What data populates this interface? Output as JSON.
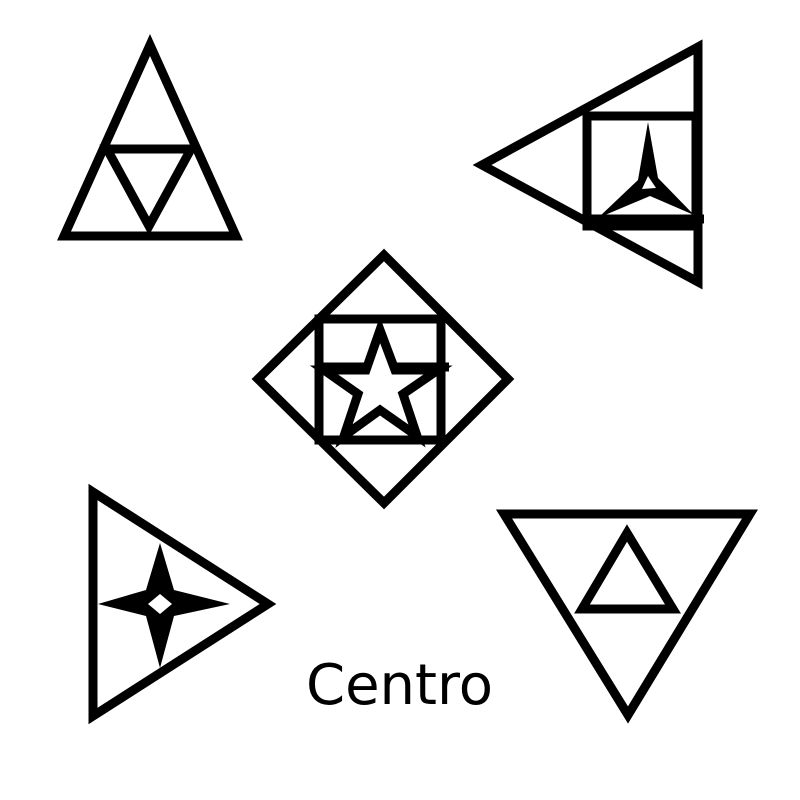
{
  "caption": "Centro",
  "colors": {
    "stroke": "#000000",
    "background": "#ffffff"
  },
  "figures": [
    {
      "name": "top-left-triangle",
      "inner": "inverted-triangle"
    },
    {
      "name": "top-right-triangle",
      "inner": "square-with-three-point-star"
    },
    {
      "name": "center-diamond",
      "inner": "square-with-five-point-star"
    },
    {
      "name": "bottom-left-triangle",
      "inner": "four-point-star"
    },
    {
      "name": "bottom-right-triangle",
      "inner": "small-triangle"
    }
  ]
}
